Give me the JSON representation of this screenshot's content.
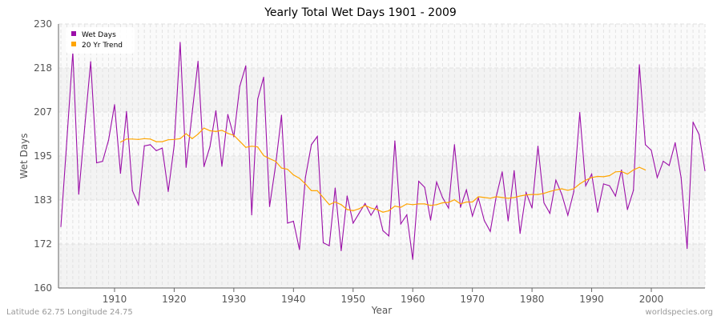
{
  "title": "Yearly Total Wet Days 1901 - 2009",
  "footer": {
    "location": "Latitude 62.75 Longitude 24.75",
    "source": "worldspecies.org"
  },
  "chart_data": {
    "type": "line",
    "title": "Yearly Total Wet Days 1901 - 2009",
    "xlabel": "Year",
    "ylabel": "Wet Days",
    "xlim": [
      1901,
      2009
    ],
    "ylim": [
      160,
      230
    ],
    "yticks": [
      230,
      218,
      207,
      195,
      183,
      172,
      160
    ],
    "ytick_values": [
      230,
      218.33,
      206.67,
      195,
      183.33,
      171.67,
      160
    ],
    "xticks": [
      1910,
      1920,
      1930,
      1940,
      1950,
      1960,
      1970,
      1980,
      1990,
      2000
    ],
    "grid": true,
    "legend": "top-left",
    "series": [
      {
        "name": "Wet Days",
        "color": "#9b0fa8",
        "x_start": 1901,
        "values": [
          176.3,
          199,
          222.6,
          184.9,
          202.8,
          220,
          193.2,
          193.6,
          199.2,
          208.6,
          190.4,
          206.8,
          185.8,
          182.1,
          197.7,
          198,
          196.4,
          197.1,
          185.6,
          197.8,
          225.1,
          192,
          206.3,
          220.1,
          192.2,
          197.5,
          207,
          192.3,
          206,
          200.1,
          213.5,
          218.9,
          179.4,
          210.1,
          215.9,
          181.6,
          192.5,
          205.8,
          177.2,
          177.7,
          170.2,
          189.3,
          198,
          200.2,
          172,
          171.2,
          186.5,
          169.9,
          184.4,
          177.2,
          179.8,
          182.4,
          179.3,
          181.8,
          175.2,
          173.8,
          199,
          177,
          179.4,
          167.6,
          188.3,
          186.7,
          178,
          188.1,
          184,
          181.2,
          198,
          181.4,
          186,
          179.1,
          183.9,
          177.9,
          175,
          184.2,
          190.8,
          177.8,
          191.1,
          174.5,
          185.3,
          181.2,
          197.6,
          182.6,
          179.8,
          188.6,
          184.8,
          179.3,
          185.5,
          206.5,
          187.1,
          190.2,
          180.1,
          187.6,
          187.1,
          184.4,
          191.3,
          180.8,
          185.9,
          219.2,
          198,
          196.5,
          189.3,
          193.6,
          192.5,
          198.5,
          189.3,
          170.5,
          204,
          200.7,
          191.1
        ]
      },
      {
        "name": "20 Yr Trend",
        "color": "#ffa500",
        "x_start": 1911,
        "values": [
          198.7,
          199.5,
          199.5,
          199.4,
          199.6,
          199.5,
          198.8,
          198.8,
          199.3,
          199.4,
          199.6,
          200.9,
          199.6,
          200.8,
          202.4,
          201.7,
          201.5,
          201.8,
          201,
          200.5,
          198.9,
          197.3,
          197.6,
          197.4,
          195.1,
          194.3,
          193.6,
          191.8,
          191.5,
          190,
          189.1,
          187.6,
          185.8,
          185.8,
          184,
          182.1,
          182.8,
          182.1,
          180.8,
          180.5,
          181,
          181.9,
          181.2,
          180.8,
          180.1,
          180.5,
          181.7,
          181.4,
          182.3,
          182.1,
          182.3,
          182.3,
          181.9,
          182.1,
          182.6,
          182.7,
          183.4,
          182.3,
          182.8,
          182.8,
          184.2,
          184,
          183.8,
          184.2,
          184,
          183.8,
          184,
          184.4,
          184.7,
          184.8,
          184.8,
          185.1,
          185.6,
          186,
          186.3,
          185.9,
          186.3,
          187.6,
          188.6,
          189.3,
          189.6,
          189.5,
          189.8,
          190.8,
          190.9,
          190.2,
          191.3,
          192,
          191.3
        ]
      }
    ]
  }
}
